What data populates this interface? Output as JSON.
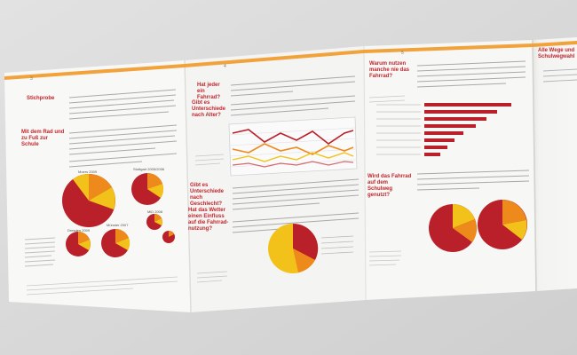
{
  "brochure": {
    "panels": [
      {
        "page_number": "3",
        "heading": "Stichprobe"
      },
      {
        "page_number": "",
        "heading": "Mit dem Rad und zu Fuß zur Schule"
      },
      {
        "page_number": "4",
        "heading": "Hat jeder ein Fahrrad?"
      },
      {
        "page_number": "",
        "heading": "Gibt es Unterschiede nach Alter?"
      },
      {
        "page_number": "",
        "heading": "Gibt es Unterschiede nach Geschlecht?"
      },
      {
        "page_number": "",
        "heading": "Hat das Wetter einen Einfluss auf die Fahrrad-nutzung?"
      },
      {
        "page_number": "5",
        "heading": "Warum nutzen manche nie das Fahrrad?"
      },
      {
        "page_number": "",
        "heading": "Wird das Fahrrad auf dem Schulweg genutzt?"
      },
      {
        "page_number": "",
        "heading": "Alle Wege und Schulwegwahl"
      }
    ],
    "pie_labels": {
      "moers": "Moers 2009",
      "stuttgart": "Stuttgart 2005/2006",
      "dresden": "Dresden 2009",
      "munster": "Münster 2007",
      "mid": "MiD 2008"
    },
    "colors": {
      "red": "#b9202a",
      "orange": "#ee8a1c",
      "yellow": "#f2c21b",
      "accent_bar": "#f2a23a",
      "paper": "#f7f7f5",
      "background": "#d9d9d9"
    }
  }
}
